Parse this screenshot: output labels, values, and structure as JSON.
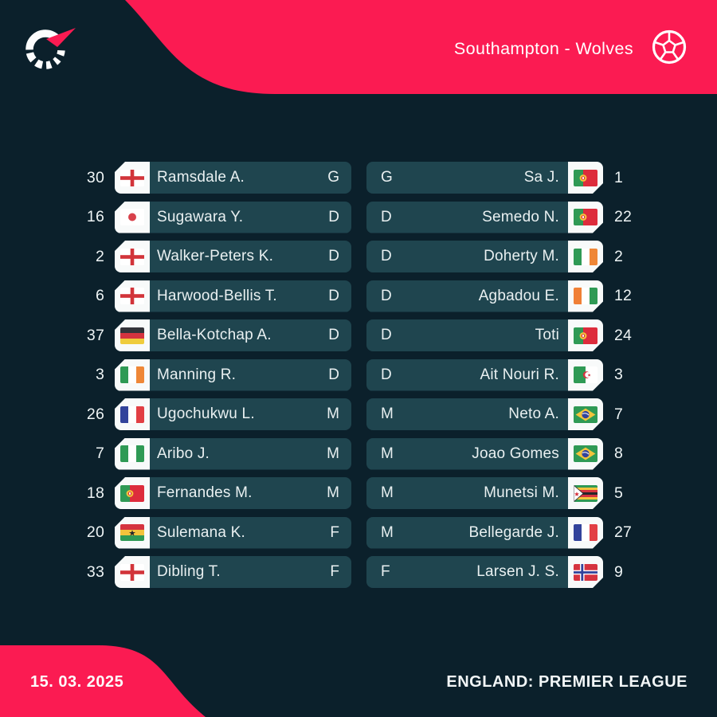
{
  "header": {
    "title": "Southampton - Wolves",
    "home_team": "Southampton",
    "away_team": "Wolves"
  },
  "footer": {
    "date": "15. 03. 2025",
    "league": "ENGLAND: PREMIER LEAGUE"
  },
  "icons": {
    "brand": "flashscore-logo",
    "sport": "football-ball-icon"
  },
  "colors": {
    "background": "#0b202b",
    "accent_pink": "#fb1b52",
    "row_pill": "#1f454f",
    "flag_tab": "#f8fafa",
    "text_light": "#edf3f4"
  },
  "lineups": {
    "home": {
      "players": [
        {
          "number": "30",
          "flag": "england",
          "name": "Ramsdale A.",
          "position": "G"
        },
        {
          "number": "16",
          "flag": "japan",
          "name": "Sugawara Y.",
          "position": "D"
        },
        {
          "number": "2",
          "flag": "england",
          "name": "Walker-Peters K.",
          "position": "D"
        },
        {
          "number": "6",
          "flag": "england",
          "name": "Harwood-Bellis T.",
          "position": "D"
        },
        {
          "number": "37",
          "flag": "germany",
          "name": "Bella-Kotchap A.",
          "position": "D"
        },
        {
          "number": "3",
          "flag": "ireland",
          "name": "Manning R.",
          "position": "D"
        },
        {
          "number": "26",
          "flag": "france",
          "name": "Ugochukwu L.",
          "position": "M"
        },
        {
          "number": "7",
          "flag": "nigeria",
          "name": "Aribo J.",
          "position": "M"
        },
        {
          "number": "18",
          "flag": "portugal",
          "name": "Fernandes M.",
          "position": "M"
        },
        {
          "number": "20",
          "flag": "ghana",
          "name": "Sulemana K.",
          "position": "F"
        },
        {
          "number": "33",
          "flag": "england",
          "name": "Dibling T.",
          "position": "F"
        }
      ]
    },
    "away": {
      "players": [
        {
          "number": "1",
          "flag": "portugal",
          "name": "Sa J.",
          "position": "G"
        },
        {
          "number": "22",
          "flag": "portugal",
          "name": "Semedo N.",
          "position": "D"
        },
        {
          "number": "2",
          "flag": "ireland",
          "name": "Doherty M.",
          "position": "D"
        },
        {
          "number": "12",
          "flag": "ivory-coast",
          "name": "Agbadou E.",
          "position": "D"
        },
        {
          "number": "24",
          "flag": "portugal",
          "name": "Toti",
          "position": "D"
        },
        {
          "number": "3",
          "flag": "algeria",
          "name": "Ait Nouri R.",
          "position": "D"
        },
        {
          "number": "7",
          "flag": "brazil",
          "name": "Neto A.",
          "position": "M"
        },
        {
          "number": "8",
          "flag": "brazil",
          "name": "Joao Gomes",
          "position": "M"
        },
        {
          "number": "5",
          "flag": "zimbabwe",
          "name": "Munetsi M.",
          "position": "M"
        },
        {
          "number": "27",
          "flag": "france",
          "name": "Bellegarde J.",
          "position": "M"
        },
        {
          "number": "9",
          "flag": "norway",
          "name": "Larsen J. S.",
          "position": "F"
        }
      ]
    }
  }
}
